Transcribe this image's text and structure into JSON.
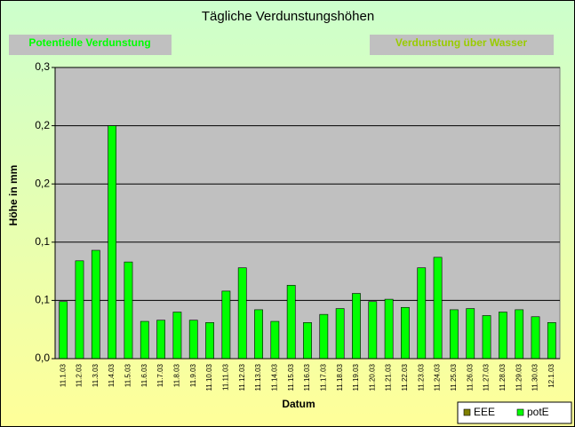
{
  "chart_data": {
    "type": "bar",
    "title": "Tägliche Verdunstungshöhen",
    "annotations": [
      "Potentielle Verdunstung",
      "Verdunstung über Wasser"
    ],
    "x_label": "Datum",
    "y_label": "Höhe in mm",
    "categories": [
      "11.1.03",
      "11.2.03",
      "11.3.03",
      "11.4.03",
      "11.5.03",
      "11.6.03",
      "11.7.03",
      "11.8.03",
      "11.9.03",
      "11.10.03",
      "11.11.03",
      "11.12.03",
      "11.13.03",
      "11.14.03",
      "11.15.03",
      "11.16.03",
      "11.17.03",
      "11.18.03",
      "11.19.03",
      "11.20.03",
      "11.21.03",
      "11.22.03",
      "11.23.03",
      "11.24.03",
      "11.25.03",
      "11.26.03",
      "11.27.03",
      "11.28.03",
      "11.29.03",
      "11.30.03",
      "12.1.03"
    ],
    "series": [
      {
        "name": "EEE",
        "color": "#808000",
        "values": [
          null,
          null,
          null,
          null,
          null,
          null,
          null,
          null,
          null,
          null,
          null,
          null,
          null,
          null,
          null,
          null,
          null,
          null,
          null,
          null,
          null,
          null,
          null,
          null,
          null,
          null,
          null,
          null,
          null,
          null,
          null
        ]
      },
      {
        "name": "potE",
        "color": "#00ff00",
        "values": [
          0.049,
          0.084,
          0.093,
          0.2,
          0.083,
          0.032,
          0.033,
          0.04,
          0.033,
          0.031,
          0.058,
          0.078,
          0.042,
          0.032,
          0.063,
          0.031,
          0.038,
          0.043,
          0.056,
          0.049,
          0.051,
          0.044,
          0.078,
          0.087,
          0.042,
          0.043,
          0.037,
          0.04,
          0.042,
          0.036,
          0.031
        ]
      }
    ],
    "ylim": [
      0,
      0.25
    ],
    "yticks": [
      {
        "value": 0,
        "label": "0,0"
      },
      {
        "value": 0.05,
        "label": "0,1"
      },
      {
        "value": 0.1,
        "label": "0,1"
      },
      {
        "value": 0.15,
        "label": "0,2"
      },
      {
        "value": 0.2,
        "label": "0,2"
      },
      {
        "value": 0.25,
        "label": "0,3"
      }
    ],
    "grid": true,
    "legend": "bottom-right"
  }
}
